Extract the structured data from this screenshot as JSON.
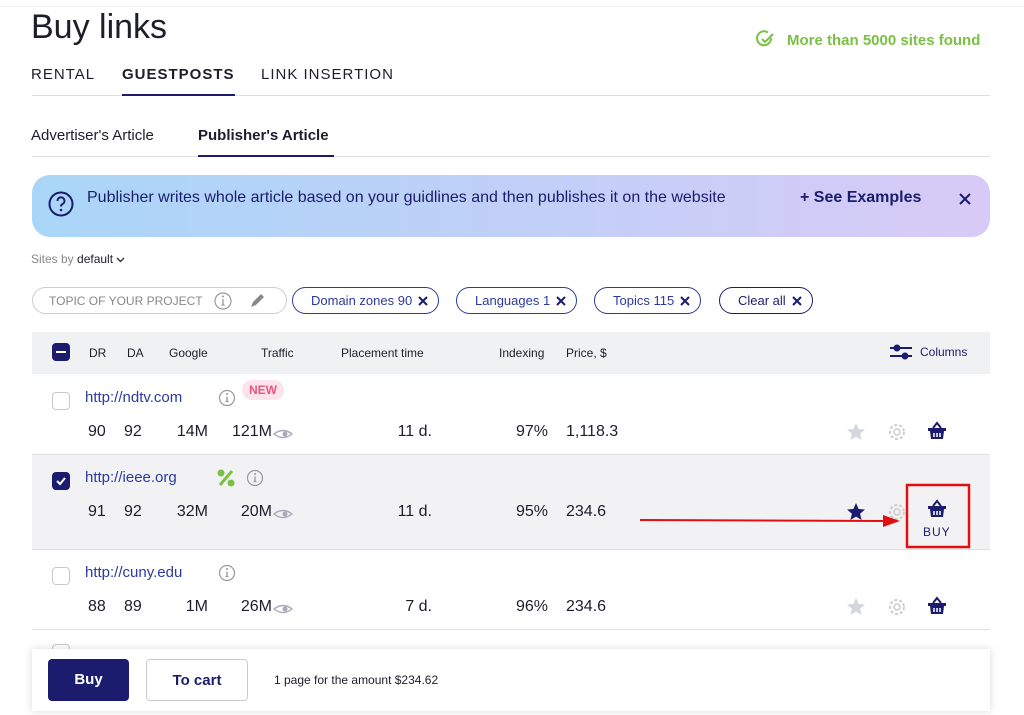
{
  "header": {
    "title": "Buy links",
    "found": "More than 5000 sites found"
  },
  "tabs": [
    "RENTAL",
    "GUESTPOSTS",
    "LINK INSERTION"
  ],
  "subtabs": [
    "Advertiser's Article",
    "Publisher's Article"
  ],
  "banner": {
    "text": "Publisher writes whole article based on your guidlines and then publishes it on the website",
    "link": "+ See Examples"
  },
  "sort": {
    "label": "Sites by",
    "value": "default"
  },
  "filters": {
    "search": "TOPIC OF YOUR PROJECT",
    "chips": [
      "Domain zones 90",
      "Languages 1",
      "Topics 115",
      "Clear all"
    ]
  },
  "table": {
    "columns": [
      "DR",
      "DA",
      "Google",
      "Traffic",
      "Placement time",
      "Indexing",
      "Price, $"
    ],
    "columns_button": "Columns",
    "rows": [
      {
        "url": "http://ndtv.com",
        "badge": "NEW",
        "dr": "90",
        "da": "92",
        "google": "14M",
        "traffic": "121M",
        "placement": "11 d.",
        "indexing": "97%",
        "price": "1,118.3"
      },
      {
        "url": "http://ieee.org",
        "dr": "91",
        "da": "92",
        "google": "32M",
        "traffic": "20M",
        "placement": "11 d.",
        "indexing": "95%",
        "price": "234.6",
        "action": "BUY"
      },
      {
        "url": "http://cuny.edu",
        "dr": "88",
        "da": "89",
        "google": "1M",
        "traffic": "26M",
        "placement": "7 d.",
        "indexing": "96%",
        "price": "234.6"
      }
    ]
  },
  "footer": {
    "buy": "Buy",
    "cart": "To cart",
    "summary": "1 page for the amount $234.62"
  }
}
